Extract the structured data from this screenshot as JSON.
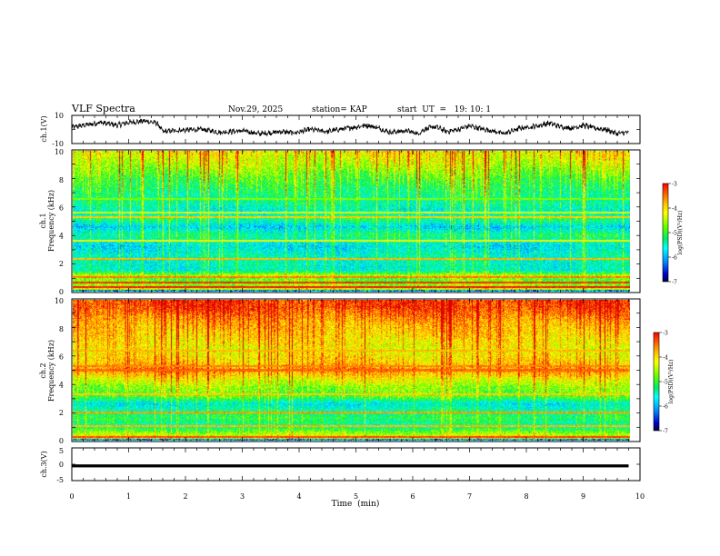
{
  "header": {
    "title": "VLF Spectra",
    "date": "Nov.29, 2025",
    "station": "station= KAP",
    "start_ut": "start  UT  =   19: 10: 1"
  },
  "chart_data": [
    {
      "id": "ch1-waveform",
      "type": "line",
      "ylabel": "ch.1(V)",
      "yticks": [
        "10",
        "-10"
      ],
      "ylim": [
        -10,
        10
      ],
      "xlim": [
        0,
        10
      ],
      "data_end_min": 9.8,
      "level_points": [
        [
          0,
          1.5
        ],
        [
          0.3,
          3.5
        ],
        [
          0.5,
          5
        ],
        [
          0.8,
          3
        ],
        [
          1.0,
          5
        ],
        [
          1.3,
          6
        ],
        [
          1.5,
          4.5
        ],
        [
          1.6,
          -1.5
        ],
        [
          1.9,
          -0.5
        ],
        [
          2.3,
          0
        ],
        [
          2.6,
          -2
        ],
        [
          3.0,
          -1
        ],
        [
          3.3,
          -3
        ],
        [
          3.7,
          -1.5
        ],
        [
          3.9,
          -2.5
        ],
        [
          4.2,
          0
        ],
        [
          4.5,
          -1.5
        ],
        [
          4.7,
          0
        ],
        [
          5.2,
          3
        ],
        [
          5.4,
          1
        ],
        [
          5.6,
          -2
        ],
        [
          5.9,
          -1
        ],
        [
          6.1,
          -3
        ],
        [
          6.2,
          0
        ],
        [
          6.4,
          2
        ],
        [
          6.6,
          -1.5
        ],
        [
          6.8,
          0
        ],
        [
          7.0,
          2.5
        ],
        [
          7.2,
          0.5
        ],
        [
          7.4,
          -1
        ],
        [
          7.6,
          -3
        ],
        [
          7.9,
          1
        ],
        [
          8.2,
          2.5
        ],
        [
          8.4,
          4.5
        ],
        [
          8.6,
          2
        ],
        [
          8.8,
          1
        ],
        [
          9.0,
          3
        ],
        [
          9.2,
          1
        ],
        [
          9.4,
          0
        ],
        [
          9.6,
          -3
        ],
        [
          9.8,
          -2
        ]
      ]
    },
    {
      "id": "ch1-spectrogram",
      "type": "heatmap",
      "ylabel": "ch.1\nFrequency  (kHz)",
      "yticks": [
        "10",
        "8",
        "6",
        "4",
        "2",
        "0"
      ],
      "ylim": [
        0,
        10
      ],
      "xlim": [
        0,
        10
      ],
      "data_end_min": 9.8,
      "colorbar": {
        "label": "log(PSD)(V²/Hz)",
        "range": [
          -7,
          -3
        ],
        "ticks": [
          "-3",
          "-4",
          "-5",
          "-6",
          "-7"
        ]
      },
      "background_profile": [
        [
          0.0,
          -4.0
        ],
        [
          0.4,
          -4.6
        ],
        [
          0.9,
          -4.8
        ],
        [
          1.1,
          -4.4
        ],
        [
          1.5,
          -5.5
        ],
        [
          2.5,
          -5.4
        ],
        [
          3.2,
          -5.7
        ],
        [
          4.0,
          -5.2
        ],
        [
          4.6,
          -5.8
        ],
        [
          5.2,
          -5.1
        ],
        [
          5.6,
          -5.6
        ],
        [
          6.3,
          -5.3
        ],
        [
          7.0,
          -5.2
        ],
        [
          8.0,
          -4.9
        ],
        [
          9.0,
          -4.5
        ],
        [
          10.0,
          -4.2
        ]
      ],
      "lines": [
        {
          "f": 0.3,
          "level": -3.2
        },
        {
          "f": 0.6,
          "level": -3.3
        },
        {
          "f": 1.0,
          "level": -3.6
        },
        {
          "f": 2.3,
          "level": -3.8
        },
        {
          "f": 3.6,
          "level": -4.2
        },
        {
          "f": 5.3,
          "level": -3.9
        },
        {
          "f": 5.6,
          "level": -4.3
        },
        {
          "f": 6.6,
          "level": -4.6
        }
      ],
      "impulsive_activity": 0.9
    },
    {
      "id": "ch2-spectrogram",
      "type": "heatmap",
      "ylabel": "ch.2\nFrequency  (kHz)",
      "yticks": [
        "10",
        "8",
        "6",
        "4",
        "2",
        "0"
      ],
      "ylim": [
        0,
        10
      ],
      "xlim": [
        0,
        10
      ],
      "data_end_min": 9.8,
      "colorbar": {
        "label": "log(PSD)(V²/Hz)",
        "range": [
          -7,
          -3
        ],
        "ticks": [
          "-3",
          "-4",
          "-5",
          "-6",
          "-7"
        ]
      },
      "background_profile": [
        [
          0.0,
          -4.0
        ],
        [
          0.4,
          -4.4
        ],
        [
          1.0,
          -5.3
        ],
        [
          1.6,
          -5.0
        ],
        [
          2.0,
          -5.2
        ],
        [
          2.6,
          -5.6
        ],
        [
          3.1,
          -4.8
        ],
        [
          3.8,
          -4.6
        ],
        [
          4.4,
          -4.2
        ],
        [
          5.0,
          -3.7
        ],
        [
          5.6,
          -4.0
        ],
        [
          6.5,
          -4.2
        ],
        [
          7.5,
          -4.0
        ],
        [
          8.5,
          -3.8
        ],
        [
          9.5,
          -3.4
        ],
        [
          10.0,
          -3.4
        ]
      ],
      "lines": [
        {
          "f": 0.2,
          "level": -3.4
        },
        {
          "f": 1.0,
          "level": -3.8
        },
        {
          "f": 2.0,
          "level": -3.7
        },
        {
          "f": 3.3,
          "level": -3.9
        },
        {
          "f": 5.0,
          "level": -3.5
        },
        {
          "f": 5.3,
          "level": -3.6
        },
        {
          "f": 6.4,
          "level": -3.8
        }
      ],
      "impulsive_activity": 0.7
    },
    {
      "id": "ch3-waveform",
      "type": "line",
      "ylabel": "ch.3(V)",
      "yticks": [
        "5",
        "0",
        "-5"
      ],
      "ylim": [
        -5,
        5
      ],
      "xlim": [
        0,
        10
      ],
      "data_end_min": 9.8,
      "level_points": [
        [
          0,
          -0.5
        ],
        [
          9.8,
          -0.5
        ]
      ],
      "band_halfwidth": 0.45
    }
  ],
  "x_axis": {
    "label": "Time  (min)",
    "ticks": [
      "0",
      "1",
      "2",
      "3",
      "4",
      "5",
      "6",
      "7",
      "8",
      "9",
      "10"
    ]
  },
  "colors": {
    "frame": "#000000",
    "trace": "#000000"
  }
}
